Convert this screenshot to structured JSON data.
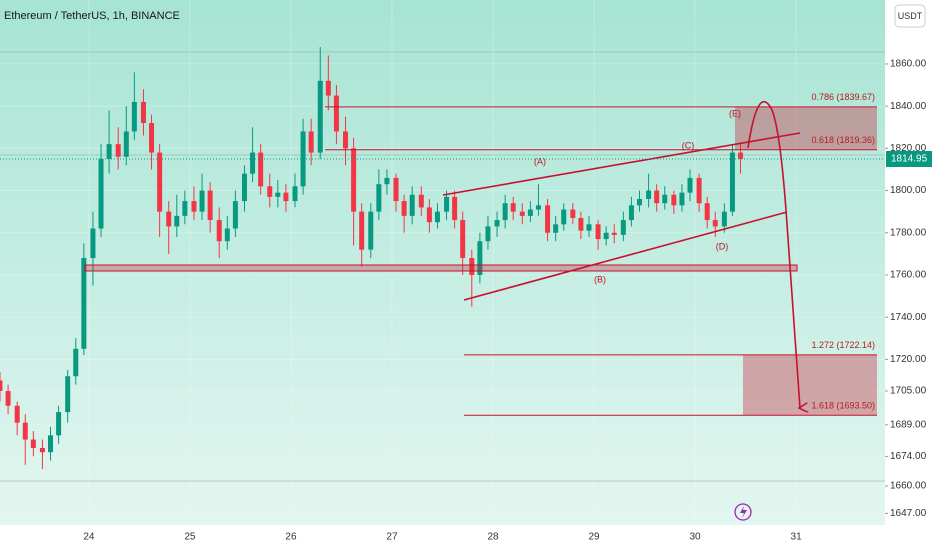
{
  "chart_data": {
    "type": "candlestick",
    "title": "Ethereum / TetherUS, 1h, BINANCE",
    "currency": "USDT",
    "xlim": [
      23.12,
      31.88
    ],
    "xticks": [
      24,
      25,
      26,
      27,
      28,
      29,
      30,
      31
    ],
    "ylim": [
      1641.5,
      1890.3
    ],
    "yticks": [
      {
        "value": 1860,
        "label": "1860.00"
      },
      {
        "value": 1840,
        "label": "1840.00"
      },
      {
        "value": 1820,
        "label": "1820.00"
      },
      {
        "value": 1800,
        "label": "1800.00"
      },
      {
        "value": 1780,
        "label": "1780.00"
      },
      {
        "value": 1760,
        "label": "1760.00"
      },
      {
        "value": 1740,
        "label": "1740.00"
      },
      {
        "value": 1720,
        "label": "1720.00"
      },
      {
        "value": 1705,
        "label": "1705.00"
      },
      {
        "value": 1689,
        "label": "1689.00"
      },
      {
        "value": 1674,
        "label": "1674.00"
      },
      {
        "value": 1660,
        "label": "1660.00"
      },
      {
        "value": 1647,
        "label": "1647.00"
      }
    ],
    "last_price": 1814.95,
    "up_color": "#089981",
    "down_color": "#f23645",
    "x": [
      23.12,
      23.2,
      23.29,
      23.37,
      23.45,
      23.54,
      23.62,
      23.7,
      23.79,
      23.87,
      23.95,
      24.04,
      24.12,
      24.2,
      24.29,
      24.37,
      24.45,
      24.54,
      24.62,
      24.7,
      24.79,
      24.87,
      24.95,
      25.04,
      25.12,
      25.2,
      25.29,
      25.37,
      25.45,
      25.54,
      25.62,
      25.7,
      25.79,
      25.87,
      25.95,
      26.04,
      26.12,
      26.2,
      26.29,
      26.37,
      26.45,
      26.54,
      26.62,
      26.7,
      26.79,
      26.87,
      26.95,
      27.04,
      27.12,
      27.2,
      27.29,
      27.37,
      27.45,
      27.54,
      27.62,
      27.7,
      27.79,
      27.87,
      27.95,
      28.04,
      28.12,
      28.2,
      28.29,
      28.37,
      28.45,
      28.54,
      28.62,
      28.7,
      28.79,
      28.87,
      28.95,
      29.04,
      29.12,
      29.2,
      29.29,
      29.37,
      29.45,
      29.54,
      29.62,
      29.7,
      29.79,
      29.87,
      29.95,
      30.04,
      30.12,
      30.2,
      30.29,
      30.37,
      30.45
    ],
    "open": [
      1710,
      1705,
      1698,
      1690,
      1682,
      1678,
      1676,
      1684,
      1695,
      1712,
      1725,
      1768,
      1782,
      1815,
      1822,
      1816,
      1828,
      1842,
      1832,
      1818,
      1790,
      1783,
      1788,
      1795,
      1790,
      1800,
      1786,
      1776,
      1782,
      1795,
      1808,
      1818,
      1802,
      1797,
      1799,
      1795,
      1802,
      1828,
      1818,
      1852,
      1845,
      1828,
      1820,
      1790,
      1772,
      1790,
      1803,
      1806,
      1795,
      1788,
      1798,
      1792,
      1785,
      1790,
      1797,
      1786,
      1768,
      1760,
      1776,
      1783,
      1786,
      1794,
      1790,
      1788,
      1791,
      1793,
      1780,
      1784,
      1791,
      1787,
      1781,
      1784,
      1777,
      1780,
      1779,
      1786,
      1793,
      1796,
      1800,
      1794,
      1798,
      1793,
      1799,
      1806,
      1794,
      1786,
      1783,
      1790,
      1818
    ],
    "high": [
      1714,
      1708,
      1700,
      1694,
      1686,
      1682,
      1688,
      1698,
      1715,
      1730,
      1775,
      1790,
      1822,
      1838,
      1830,
      1840,
      1856,
      1848,
      1836,
      1822,
      1795,
      1798,
      1800,
      1802,
      1808,
      1804,
      1792,
      1788,
      1800,
      1812,
      1830,
      1822,
      1808,
      1805,
      1803,
      1808,
      1834,
      1834,
      1868,
      1864,
      1850,
      1835,
      1825,
      1794,
      1794,
      1810,
      1810,
      1808,
      1798,
      1802,
      1802,
      1796,
      1794,
      1800,
      1800,
      1790,
      1772,
      1780,
      1788,
      1790,
      1798,
      1797,
      1794,
      1795,
      1803,
      1796,
      1788,
      1794,
      1794,
      1790,
      1788,
      1786,
      1783,
      1784,
      1790,
      1797,
      1800,
      1808,
      1803,
      1802,
      1800,
      1803,
      1810,
      1808,
      1797,
      1790,
      1794,
      1822,
      1822
    ],
    "low": [
      1700,
      1694,
      1684,
      1670,
      1674,
      1668,
      1672,
      1680,
      1690,
      1708,
      1722,
      1755,
      1778,
      1808,
      1810,
      1812,
      1824,
      1826,
      1810,
      1778,
      1770,
      1778,
      1784,
      1786,
      1786,
      1780,
      1768,
      1772,
      1778,
      1790,
      1804,
      1798,
      1792,
      1792,
      1790,
      1792,
      1798,
      1812,
      1815,
      1838,
      1822,
      1812,
      1774,
      1764,
      1768,
      1786,
      1798,
      1790,
      1780,
      1784,
      1788,
      1780,
      1782,
      1786,
      1782,
      1760,
      1745,
      1756,
      1772,
      1778,
      1782,
      1786,
      1784,
      1785,
      1788,
      1776,
      1776,
      1781,
      1784,
      1777,
      1778,
      1772,
      1774,
      1775,
      1776,
      1783,
      1790,
      1792,
      1790,
      1791,
      1789,
      1790,
      1795,
      1790,
      1782,
      1778,
      1780,
      1788,
      1808
    ],
    "close": [
      1705,
      1698,
      1690,
      1682,
      1678,
      1676,
      1684,
      1695,
      1712,
      1725,
      1768,
      1782,
      1815,
      1822,
      1816,
      1828,
      1842,
      1832,
      1818,
      1790,
      1783,
      1788,
      1795,
      1790,
      1800,
      1786,
      1776,
      1782,
      1795,
      1808,
      1818,
      1802,
      1797,
      1799,
      1795,
      1802,
      1828,
      1818,
      1852,
      1845,
      1828,
      1820,
      1790,
      1772,
      1790,
      1803,
      1806,
      1795,
      1788,
      1798,
      1792,
      1785,
      1790,
      1797,
      1786,
      1768,
      1760,
      1776,
      1783,
      1786,
      1794,
      1790,
      1788,
      1791,
      1793,
      1780,
      1784,
      1791,
      1787,
      1781,
      1784,
      1777,
      1780,
      1779,
      1786,
      1793,
      1796,
      1800,
      1794,
      1798,
      1793,
      1799,
      1806,
      1794,
      1786,
      1783,
      1790,
      1818,
      1815
    ],
    "levels": [
      {
        "value": 1839.67,
        "label": "0.786 (1839.67)"
      },
      {
        "value": 1819.36,
        "label": "0.618 (1819.36)"
      },
      {
        "value": 1722.14,
        "label": "1.272 (1722.14)"
      },
      {
        "value": 1693.5,
        "label": "1.618 (1693.50)"
      }
    ],
    "wave_labels": [
      "(A)",
      "(B)",
      "(C)",
      "(D)",
      "(E)"
    ]
  }
}
